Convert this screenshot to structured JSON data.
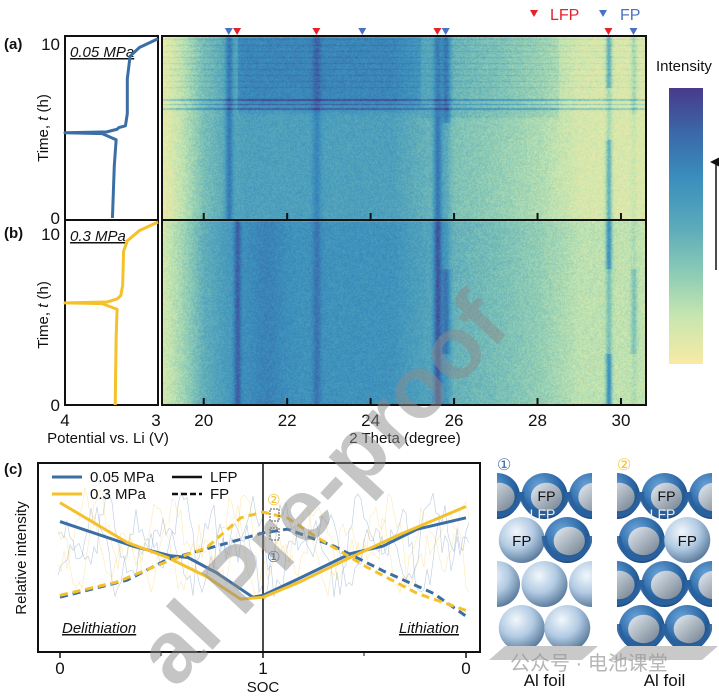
{
  "panel_labels": {
    "a": "(a)",
    "b": "(b)",
    "c": "(c)"
  },
  "colors": {
    "blue": "#3a6ea5",
    "yellow": "#f5c12a",
    "lfp_marker": "#e8202a",
    "fp_marker": "#4a72c4"
  },
  "chart_data": [
    {
      "type": "line",
      "panel": "a",
      "annotation": "0.05 MPa",
      "xlabel": "Potential vs. Li (V)",
      "ylabel_parts": [
        "Time, ",
        "t",
        " (h)"
      ],
      "xlim": [
        4,
        3
      ],
      "ylim": [
        0,
        10
      ],
      "xticks": [
        "4",
        "3"
      ],
      "yticks": [
        "0",
        "10"
      ],
      "series": [
        {
          "color": "#3a6ea5",
          "points": [
            [
              3.49,
              0
            ],
            [
              3.47,
              3
            ],
            [
              3.45,
              4.5
            ],
            [
              3.6,
              4.85
            ],
            [
              4.0,
              4.9
            ],
            [
              3.55,
              4.95
            ],
            [
              3.44,
              5.1
            ],
            [
              3.42,
              5.2
            ],
            [
              3.35,
              5.3
            ],
            [
              3.33,
              6
            ],
            [
              3.33,
              8
            ],
            [
              3.3,
              9.3
            ],
            [
              3.2,
              9.8
            ],
            [
              3.0,
              10.3
            ]
          ]
        }
      ]
    },
    {
      "type": "line",
      "panel": "b",
      "annotation": "0.3 MPa",
      "ylabel_parts": [
        "Time, ",
        "t",
        " (h)"
      ],
      "xlim": [
        4,
        3
      ],
      "ylim": [
        0,
        10
      ],
      "yticks": [
        "0",
        "10"
      ],
      "series": [
        {
          "color": "#f5c12a",
          "points": [
            [
              3.46,
              0
            ],
            [
              3.45,
              4
            ],
            [
              3.44,
              5.6
            ],
            [
              3.6,
              5.93
            ],
            [
              4.0,
              5.97
            ],
            [
              3.55,
              6.02
            ],
            [
              3.44,
              6.2
            ],
            [
              3.4,
              6.4
            ],
            [
              3.38,
              7
            ],
            [
              3.37,
              9
            ],
            [
              3.33,
              9.6
            ],
            [
              3.2,
              10.2
            ],
            [
              3.0,
              10.7
            ]
          ]
        }
      ]
    },
    {
      "type": "heatmap",
      "panels": [
        "a",
        "b"
      ],
      "xlabel": "2 Theta (degree)",
      "xlim": [
        19.0,
        30.6
      ],
      "xticks": [
        "20",
        "22",
        "24",
        "26",
        "28",
        "30"
      ],
      "ylim": [
        0,
        10.5
      ],
      "colorbar_label": "Intensity",
      "colormap": [
        "#f8eaa4",
        "#c8e6b0",
        "#8ccbb5",
        "#5aa9bb",
        "#3a8fbd",
        "#3a6aaa",
        "#483a8a"
      ],
      "legend": [
        {
          "label": "LFP",
          "color": "#e8202a"
        },
        {
          "label": "FP",
          "color": "#4a72c4"
        }
      ],
      "lfp_peaks": [
        20.8,
        22.7,
        25.6,
        29.7
      ],
      "fp_peaks": [
        20.6,
        23.8,
        25.8,
        30.3
      ]
    },
    {
      "type": "line",
      "panel": "c",
      "xlabel": "SOC",
      "ylabel": "Relative intensity",
      "xticks": [
        "0",
        "1",
        "0"
      ],
      "regions": [
        "Delithiation",
        "Lithiation"
      ],
      "markers": [
        "②",
        "①"
      ],
      "legend": [
        {
          "label": "0.05 MPa",
          "color": "#3a6ea5",
          "style": "solid"
        },
        {
          "label": "0.3 MPa",
          "color": "#f5c12a",
          "style": "solid"
        },
        {
          "label": "LFP",
          "color": "#111111",
          "style": "solid"
        },
        {
          "label": "FP",
          "color": "#111111",
          "style": "dashed"
        }
      ],
      "series": [
        {
          "pressure": "0.05 MPa",
          "phase": "LFP",
          "color": "#3a6ea5",
          "dashed": false,
          "delithiation": [
            [
              0,
              0.69
            ],
            [
              0.36,
              0.56
            ],
            [
              0.54,
              0.51
            ],
            [
              0.63,
              0.5
            ],
            [
              0.77,
              0.42
            ],
            [
              0.95,
              0.29
            ],
            [
              1,
              0.3
            ]
          ],
          "lithiation": [
            [
              1,
              0.3
            ],
            [
              0.82,
              0.39
            ],
            [
              0.57,
              0.52
            ],
            [
              0.41,
              0.56
            ],
            [
              0.24,
              0.65
            ],
            [
              0,
              0.71
            ]
          ]
        },
        {
          "pressure": "0.3 MPa",
          "phase": "LFP",
          "color": "#f5c12a",
          "dashed": false,
          "delithiation": [
            [
              0,
              0.79
            ],
            [
              0.33,
              0.58
            ],
            [
              0.53,
              0.5
            ],
            [
              0.72,
              0.4
            ],
            [
              0.89,
              0.28
            ],
            [
              1,
              0.29
            ]
          ],
          "lithiation": [
            [
              1,
              0.29
            ],
            [
              0.82,
              0.37
            ],
            [
              0.57,
              0.5
            ],
            [
              0.33,
              0.62
            ],
            [
              0,
              0.77
            ]
          ]
        },
        {
          "pressure": "0.05 MPa",
          "phase": "FP",
          "color": "#3a6ea5",
          "dashed": true,
          "delithiation": [
            [
              0,
              0.29
            ],
            [
              0.33,
              0.38
            ],
            [
              0.53,
              0.49
            ],
            [
              0.77,
              0.56
            ],
            [
              1,
              0.63
            ]
          ],
          "lithiation": [
            [
              1,
              0.63
            ],
            [
              0.88,
              0.65
            ],
            [
              0.65,
              0.56
            ],
            [
              0.41,
              0.43
            ],
            [
              0.16,
              0.31
            ],
            [
              0,
              0.19
            ]
          ]
        },
        {
          "pressure": "0.3 MPa",
          "phase": "FP",
          "color": "#f5c12a",
          "dashed": true,
          "delithiation": [
            [
              0,
              0.3
            ],
            [
              0.28,
              0.37
            ],
            [
              0.53,
              0.48
            ],
            [
              0.72,
              0.55
            ],
            [
              0.89,
              0.71
            ],
            [
              1,
              0.74
            ]
          ],
          "lithiation": [
            [
              1,
              0.74
            ],
            [
              0.88,
              0.71
            ],
            [
              0.74,
              0.61
            ],
            [
              0.49,
              0.45
            ],
            [
              0.24,
              0.31
            ],
            [
              0,
              0.22
            ]
          ]
        }
      ]
    }
  ],
  "schematic": {
    "columns": [
      {
        "marker": "①",
        "marker_color": "#3a6ea5",
        "foil_label": "Al foil",
        "rows": [
          [
            "lfp",
            "lfp",
            "lfp"
          ],
          [
            "fp",
            "lfp"
          ],
          [
            "fp",
            "fp",
            "fp"
          ],
          [
            "fp",
            "fp"
          ]
        ]
      },
      {
        "marker": "②",
        "marker_color": "#f5c12a",
        "foil_label": "Al foil",
        "rows": [
          [
            "lfp",
            "lfp",
            "lfp"
          ],
          [
            "lfp",
            "fp"
          ],
          [
            "lfp",
            "lfp",
            "lfp"
          ],
          [
            "lfp",
            "lfp"
          ]
        ]
      }
    ],
    "labels": {
      "core": "FP",
      "shell": "LFP",
      "fp": "FP"
    }
  },
  "watermarks": {
    "diagonal": "al Pre-proof",
    "bottom": "公众号 · 电池课堂"
  }
}
